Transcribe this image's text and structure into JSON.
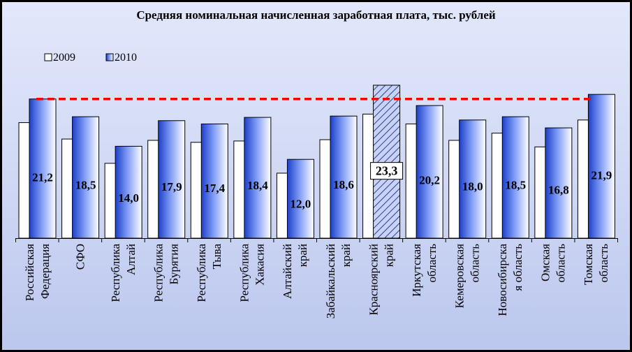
{
  "chart_data": {
    "type": "bar",
    "title": "Средняя номинальная начисленная заработная плата, тыс. рублей",
    "categories": [
      [
        "Российская",
        "Федерация"
      ],
      [
        "СФО"
      ],
      [
        "Республика",
        "Алтай"
      ],
      [
        "Республика",
        "Бурятия"
      ],
      [
        "Республика",
        "Тыва"
      ],
      [
        "Республика",
        "Хакасия"
      ],
      [
        "Алтайский",
        "край"
      ],
      [
        "Забайкальский",
        "край"
      ],
      [
        "Красноярский",
        "край"
      ],
      [
        "Иркутская",
        "область"
      ],
      [
        "Кемеровская",
        "область"
      ],
      [
        "Новосибирска",
        "я область"
      ],
      [
        "Омская",
        "область"
      ],
      [
        "Томская",
        "область"
      ]
    ],
    "series": [
      {
        "name": "2009",
        "values": [
          17.6,
          15.1,
          11.4,
          14.9,
          14.6,
          14.8,
          9.9,
          15.0,
          18.9,
          17.4,
          14.9,
          16.0,
          13.9,
          18.0
        ],
        "color": "#ffffff"
      },
      {
        "name": "2010",
        "values": [
          21.2,
          18.5,
          14.0,
          17.9,
          17.4,
          18.4,
          12.0,
          18.6,
          23.3,
          20.2,
          18.0,
          18.5,
          16.8,
          21.9
        ],
        "color": "#5b7ff0",
        "labels": [
          "21,2",
          "18,5",
          "14,0",
          "17,9",
          "17,4",
          "18,4",
          "12,0",
          "18,6",
          "23,3",
          "20,2",
          "18,0",
          "18,5",
          "16,8",
          "21,9"
        ]
      }
    ],
    "highlight_index": 8,
    "reference_line": {
      "value": 21.2,
      "color": "#ff0000",
      "style": "dashed"
    },
    "legend": {
      "position": "top-left"
    },
    "grid": false
  }
}
